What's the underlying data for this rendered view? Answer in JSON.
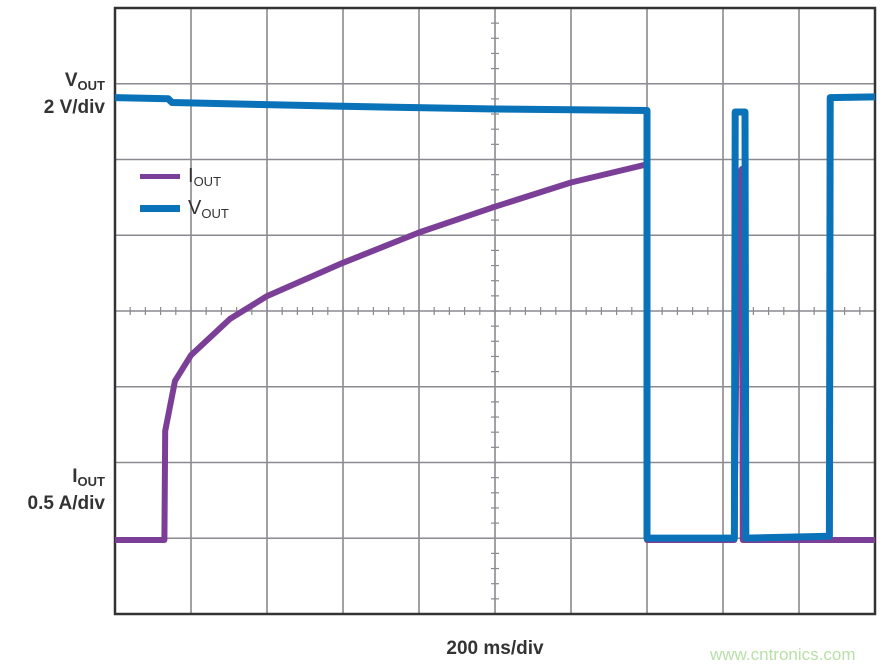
{
  "chart_data": {
    "type": "line",
    "title": "",
    "xlabel": "200 ms/div",
    "x_unit": "ms",
    "xlim": [
      0,
      2000
    ],
    "divisions": {
      "x": 10,
      "y": 8
    },
    "grid": true,
    "legend_position": "top-left",
    "channels": {
      "vout": {
        "label_main": "V",
        "label_sub": "OUT",
        "scale": "2 V/div"
      },
      "iout": {
        "label_main": "I",
        "label_sub": "OUT",
        "scale": "0.5 A/div"
      }
    },
    "series": [
      {
        "name": "IOUT",
        "unit": "A",
        "color": "#7b3f98",
        "points": [
          [
            0,
            0
          ],
          [
            130,
            0
          ],
          [
            132,
            0.72
          ],
          [
            158,
            1.05
          ],
          [
            200,
            1.22
          ],
          [
            303,
            1.46
          ],
          [
            400,
            1.61
          ],
          [
            600,
            1.83
          ],
          [
            800,
            2.03
          ],
          [
            1000,
            2.2
          ],
          [
            1200,
            2.36
          ],
          [
            1400,
            2.48
          ],
          [
            1400,
            0
          ],
          [
            1630,
            0
          ],
          [
            1640,
            2.4
          ],
          [
            1650,
            2.45
          ],
          [
            1652,
            0
          ],
          [
            2000,
            0
          ]
        ]
      },
      {
        "name": "VOUT",
        "unit": "V",
        "color": "#0a72b8",
        "points": [
          [
            0,
            11.68
          ],
          [
            140,
            11.65
          ],
          [
            150,
            11.55
          ],
          [
            600,
            11.45
          ],
          [
            1000,
            11.38
          ],
          [
            1400,
            11.34
          ],
          [
            1400,
            0.05
          ],
          [
            1630,
            0.05
          ],
          [
            1632,
            11.3
          ],
          [
            1658,
            11.3
          ],
          [
            1660,
            0.05
          ],
          [
            1880,
            0.1
          ],
          [
            1882,
            11.68
          ],
          [
            2000,
            11.7
          ]
        ]
      }
    ]
  },
  "watermark": "www.cntronics.com"
}
